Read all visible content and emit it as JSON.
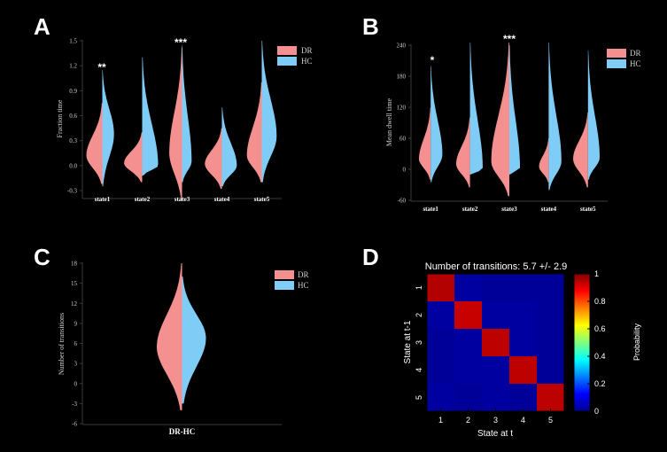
{
  "colors": {
    "background": "#000000",
    "dr": "#f4908f",
    "hc": "#7fcdf6",
    "axis": "#3a3a3a",
    "text": "#cfcfcf",
    "star": "#ffffff"
  },
  "panel_labels": [
    "A",
    "B",
    "C",
    "D"
  ],
  "chart_data": [
    {
      "panel": "A",
      "type": "violin",
      "ylabel": "Fraction time",
      "ylim": [
        -0.3,
        1.5
      ],
      "yticks": [
        "1.5",
        "1.2",
        "0.9",
        "0.6",
        "0.3",
        "0.0",
        "-0.3"
      ],
      "categories": [
        "state1",
        "state2",
        "state3",
        "state4",
        "state5"
      ],
      "legend": [
        "DR",
        "HC"
      ],
      "significance": [
        "**",
        "",
        "***",
        "",
        ""
      ],
      "series": [
        {
          "name": "DR",
          "values": [
            {
              "ymin": -0.22,
              "ymax": 0.75,
              "peak": 0.12,
              "width": 0.75
            },
            {
              "ymin": -0.2,
              "ymax": 0.4,
              "peak": 0.03,
              "width": 0.85
            },
            {
              "ymin": -0.42,
              "ymax": 1.42,
              "peak": 0.15,
              "width": 0.6
            },
            {
              "ymin": -0.28,
              "ymax": 0.45,
              "peak": 0.02,
              "width": 0.8
            },
            {
              "ymin": -0.2,
              "ymax": 1.0,
              "peak": 0.12,
              "width": 0.7
            }
          ]
        },
        {
          "name": "HC",
          "values": [
            {
              "ymin": -0.25,
              "ymax": 1.15,
              "peak": 0.38,
              "width": 0.55
            },
            {
              "ymin": -0.12,
              "ymax": 1.3,
              "peak": 0.0,
              "width": 0.75
            },
            {
              "ymin": -0.2,
              "ymax": 1.45,
              "peak": 0.05,
              "width": 0.45
            },
            {
              "ymin": -0.25,
              "ymax": 0.7,
              "peak": 0.0,
              "width": 0.7
            },
            {
              "ymin": -0.2,
              "ymax": 1.5,
              "peak": 0.35,
              "width": 0.7
            }
          ]
        }
      ]
    },
    {
      "panel": "B",
      "type": "violin",
      "ylabel": "Mean dwell time",
      "ylim": [
        -60,
        240
      ],
      "yticks": [
        "240",
        "180",
        "120",
        "60",
        "0",
        "-60"
      ],
      "categories": [
        "state1",
        "state2",
        "state3",
        "state4",
        "state5"
      ],
      "legend": [
        "DR",
        "HC"
      ],
      "significance": [
        "*",
        "",
        "***",
        "",
        ""
      ],
      "series": [
        {
          "name": "DR",
          "values": [
            {
              "ymin": -20,
              "ymax": 120,
              "peak": 20,
              "width": 0.55
            },
            {
              "ymin": -35,
              "ymax": 100,
              "peak": 10,
              "width": 0.65
            },
            {
              "ymin": -52,
              "ymax": 245,
              "peak": 15,
              "width": 0.85
            },
            {
              "ymin": -25,
              "ymax": 60,
              "peak": 5,
              "width": 0.45
            },
            {
              "ymin": -35,
              "ymax": 110,
              "peak": 20,
              "width": 0.7
            }
          ]
        },
        {
          "name": "HC",
          "values": [
            {
              "ymin": -25,
              "ymax": 200,
              "peak": 28,
              "width": 0.55
            },
            {
              "ymin": -10,
              "ymax": 245,
              "peak": 0,
              "width": 0.6
            },
            {
              "ymin": -10,
              "ymax": 240,
              "peak": 2,
              "width": 0.5
            },
            {
              "ymin": -40,
              "ymax": 245,
              "peak": 15,
              "width": 0.6
            },
            {
              "ymin": -20,
              "ymax": 230,
              "peak": 22,
              "width": 0.55
            }
          ]
        }
      ]
    },
    {
      "panel": "C",
      "type": "violin",
      "ylabel": "Number of transitions",
      "ylim": [
        -6,
        18
      ],
      "yticks": [
        "18",
        "15",
        "12",
        "9",
        "6",
        "3",
        "0",
        "-3",
        "-6"
      ],
      "categories": [
        "DR-HC"
      ],
      "legend": [
        "DR",
        "HC"
      ],
      "series": [
        {
          "name": "DR",
          "values": [
            {
              "ymin": -4,
              "ymax": 18,
              "peak": 5.5,
              "width": 0.95
            }
          ]
        },
        {
          "name": "HC",
          "values": [
            {
              "ymin": -3,
              "ymax": 16,
              "peak": 6.8,
              "width": 0.9
            }
          ]
        }
      ]
    },
    {
      "panel": "D",
      "type": "heatmap",
      "title": "Number of transitions: 5.7 +/- 2.9",
      "xlabel": "State at t",
      "ylabel": "State at t-1",
      "categories": [
        "1",
        "2",
        "3",
        "4",
        "5"
      ],
      "matrix": [
        [
          0.95,
          0.02,
          0.01,
          0.01,
          0.01
        ],
        [
          0.02,
          0.93,
          0.02,
          0.02,
          0.01
        ],
        [
          0.01,
          0.02,
          0.94,
          0.02,
          0.01
        ],
        [
          0.01,
          0.02,
          0.02,
          0.94,
          0.01
        ],
        [
          0.02,
          0.01,
          0.02,
          0.01,
          0.94
        ]
      ],
      "colorbar_label": "Probability",
      "colorbar_ticks": [
        "1",
        "0.8",
        "0.6",
        "0.4",
        "0.2",
        "0"
      ],
      "colorbar_range": [
        0,
        1
      ]
    }
  ]
}
